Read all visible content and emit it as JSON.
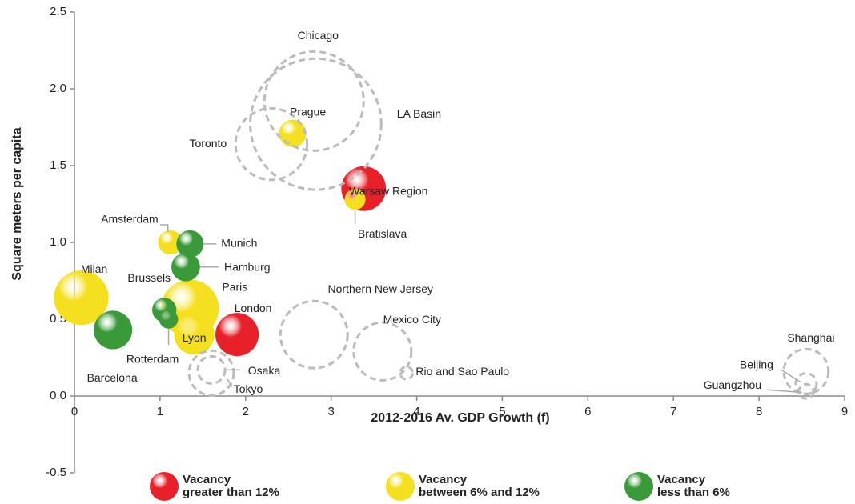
{
  "chart_data": {
    "type": "bubble",
    "x_label": "2012-2016 Av. GDP Growth (f)",
    "y_label": "Square meters per capita",
    "xlim": [
      0,
      9
    ],
    "xticks": [
      0,
      1,
      2,
      3,
      4,
      5,
      6,
      7,
      8,
      9
    ],
    "ylim": [
      -0.5,
      2.5
    ],
    "yticks": [
      -0.5,
      {
        "value": 0,
        "label": "0.0"
      },
      0.5,
      {
        "value": 1,
        "label": "1.0"
      },
      1.5,
      {
        "value": 2,
        "label": "2.0"
      },
      2.5
    ],
    "grid": false,
    "legend": "bottom",
    "series": [
      {
        "name": "Vacancy\ngreater than 12%",
        "color": "#e8202a",
        "labels": [
          "Warsaw Region",
          "London"
        ],
        "x": [
          3.38,
          1.9
        ],
        "values": [
          1.35,
          0.4
        ],
        "sizes": [
          7.8,
          7.3
        ]
      },
      {
        "name": "Vacancy\nbetween 6% and 12%",
        "color": "#f5e020",
        "labels": [
          "Prague",
          "Bratislava",
          "Amsterdam",
          "Milan",
          "Paris",
          "Lyon"
        ],
        "x": [
          2.55,
          3.28,
          1.12,
          0.08,
          1.35,
          1.4
        ],
        "values": [
          1.71,
          1.28,
          1.0,
          0.64,
          0.57,
          0.4
        ],
        "sizes": [
          2.9,
          1.7,
          2.3,
          11.6,
          13,
          6.3
        ]
      },
      {
        "name": "Vacancy\nless than 6%",
        "color": "#3a9a3a",
        "labels": [
          "Munich",
          "Hamburg",
          "Brussels",
          "Rotterdam",
          "Barcelona"
        ],
        "x": [
          1.35,
          1.3,
          1.05,
          1.1,
          0.45
        ],
        "values": [
          0.99,
          0.84,
          0.56,
          0.5,
          0.43
        ],
        "sizes": [
          2.9,
          3.2,
          2.3,
          1.4,
          5.8
        ]
      },
      {
        "color": "#bbbbbb",
        "dashed": true,
        "labels": [
          "Chicago",
          "LA Basin",
          "Toronto",
          "Northern New Jersey",
          "Mexico City",
          "Rio and Sao Paulo",
          "Osaka",
          "Tokyo",
          "Shanghai",
          "Beijing",
          "Guangzhou"
        ],
        "x": [
          2.8,
          2.82,
          2.3,
          2.8,
          3.6,
          3.88,
          1.6,
          1.6,
          8.55,
          8.55,
          8.55
        ],
        "values": [
          1.92,
          1.77,
          1.64,
          0.4,
          0.29,
          0.15,
          0.17,
          0.15,
          0.16,
          0.08,
          0.03
        ],
        "sizes": [
          38.4,
          67,
          20,
          17.6,
          13,
          0.6,
          2.9,
          7.8,
          7.8,
          1.7,
          0.8
        ]
      }
    ]
  }
}
